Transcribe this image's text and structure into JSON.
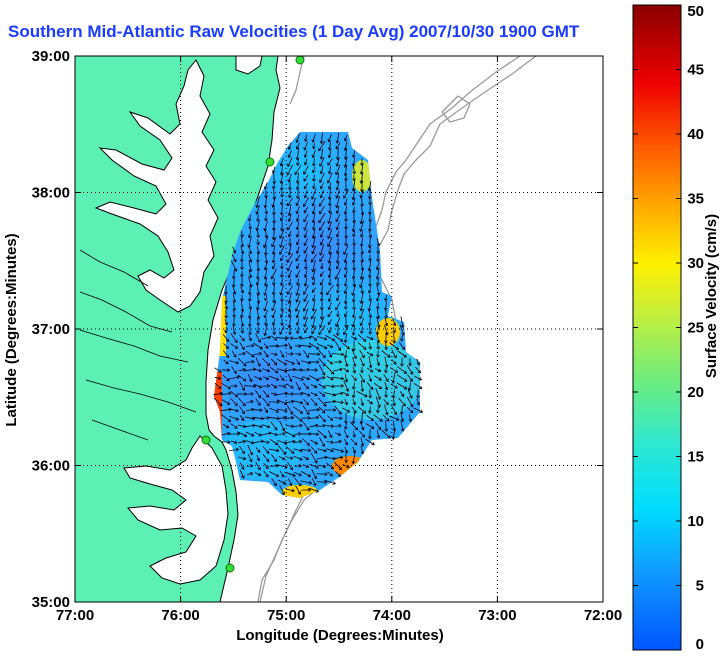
{
  "title": "Southern Mid-Atlantic Raw Velocities (1 Day Avg) 2007/10/30 1900 GMT",
  "axes": {
    "xlabel": "Longitude (Degrees:Minutes)",
    "ylabel": "Latitude (Degrees:Minutes)",
    "x_ticks": [
      "77:00",
      "76:00",
      "75:00",
      "74:00",
      "73:00",
      "72:00"
    ],
    "y_ticks": [
      "39:00",
      "38:00",
      "37:00",
      "36:00",
      "35:00"
    ],
    "xlim": [
      -77,
      -72
    ],
    "ylim": [
      35,
      39
    ],
    "grid": "dotted"
  },
  "colorbar": {
    "label": "Surface Velocity (cm/s)",
    "ticks": [
      "50",
      "45",
      "40",
      "35",
      "30",
      "25",
      "20",
      "15",
      "10",
      "5",
      "0"
    ],
    "range": [
      0,
      50
    ],
    "colormap": "jet"
  },
  "colors": {
    "land": "#5cf0b4",
    "water": "#ffffff",
    "coastline": "#000000",
    "bathymetry": "#9a9a9a",
    "title": "#1a3cff",
    "station": "#33dd33"
  }
}
